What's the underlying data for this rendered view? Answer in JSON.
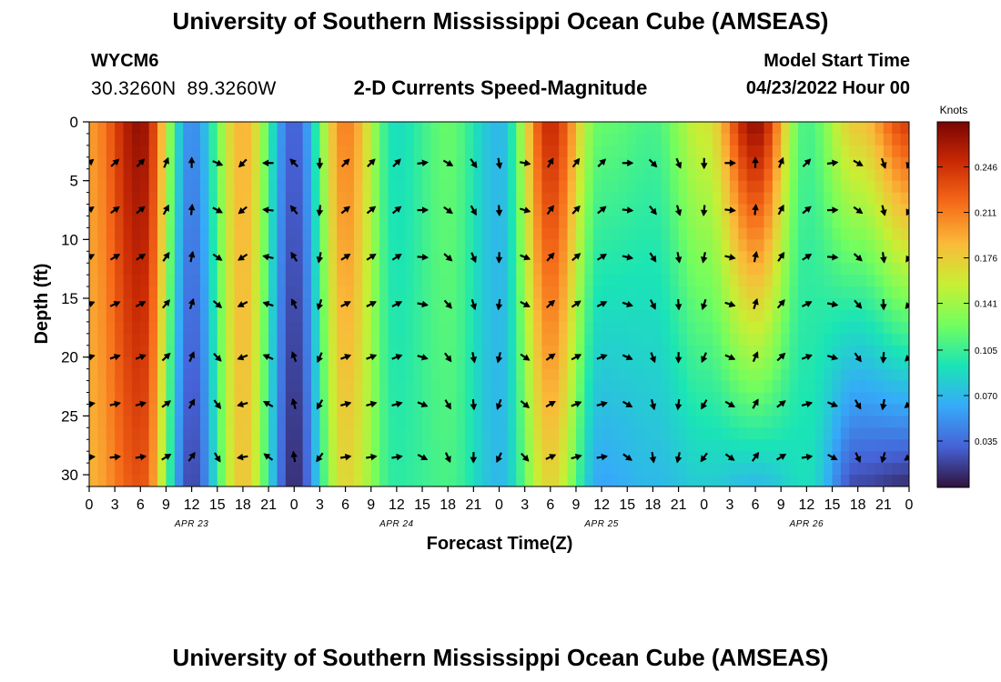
{
  "header": {
    "title": "University of Southern Mississippi Ocean Cube (AMSEAS)",
    "station_id": "WYCM6",
    "latitude": "30.3260N",
    "longitude": "89.3260W",
    "subtitle": "2-D Currents Speed-Magnitude",
    "model_start_label": "Model Start Time",
    "model_start_value": "04/23/2022 Hour 00"
  },
  "footer": {
    "title": "University of Southern Mississippi Ocean Cube (AMSEAS)"
  },
  "colorbar": {
    "unit": "Knots",
    "ticks": [
      "0.246",
      "0.211",
      "0.176",
      "0.141",
      "0.105",
      "0.070",
      "0.035"
    ],
    "tick_values": [
      0.246,
      0.211,
      0.176,
      0.141,
      0.105,
      0.07,
      0.035
    ],
    "range": [
      0,
      0.28
    ],
    "colors": [
      "#30123b",
      "#4662d7",
      "#36aaf9",
      "#1ae4b6",
      "#72fe5e",
      "#c8ef34",
      "#faba39",
      "#f66b19",
      "#ca2a04",
      "#7a0403"
    ]
  },
  "chart_data": {
    "type": "heatmap",
    "title": "2-D Currents Speed-Magnitude",
    "xlabel": "Forecast Time(Z)",
    "ylabel": "Depth (ft)",
    "x_range_hours": [
      0,
      96
    ],
    "y_range_ft": [
      0,
      31
    ],
    "y_inverted": true,
    "x_tick_labels": [
      "0",
      "3",
      "6",
      "9",
      "12",
      "15",
      "18",
      "21",
      "0",
      "3",
      "6",
      "9",
      "12",
      "15",
      "18",
      "21",
      "0",
      "3",
      "6",
      "9",
      "12",
      "15",
      "18",
      "21",
      "0",
      "3",
      "6",
      "9",
      "12",
      "15",
      "18",
      "21",
      "0"
    ],
    "x_tick_hours": [
      0,
      3,
      6,
      9,
      12,
      15,
      18,
      21,
      24,
      27,
      30,
      33,
      36,
      39,
      42,
      45,
      48,
      51,
      54,
      57,
      60,
      63,
      66,
      69,
      72,
      75,
      78,
      81,
      84,
      87,
      90,
      93,
      96
    ],
    "date_labels": [
      "APR 23",
      "APR 24",
      "APR 25",
      "APR 26"
    ],
    "date_label_hours": [
      12,
      36,
      60,
      84
    ],
    "y_tick_labels": [
      "0",
      "5",
      "10",
      "15",
      "20",
      "25",
      "30"
    ],
    "y_tick_values": [
      0,
      5,
      10,
      15,
      20,
      25,
      30
    ],
    "arrow_depths_ft": [
      3.5,
      7.5,
      11.5,
      15.5,
      20,
      24,
      28.5
    ],
    "speed_profile": {
      "columns_hours": [
        0,
        6,
        12,
        18,
        24,
        30,
        36,
        42,
        48,
        54,
        60,
        66,
        72,
        78,
        84,
        90,
        96
      ],
      "surface_knots": [
        0.2,
        0.27,
        0.05,
        0.19,
        0.03,
        0.21,
        0.09,
        0.12,
        0.07,
        0.25,
        0.12,
        0.11,
        0.16,
        0.27,
        0.11,
        0.18,
        0.24
      ],
      "bottom_knots": [
        0.19,
        0.23,
        0.02,
        0.18,
        0.01,
        0.17,
        0.1,
        0.11,
        0.07,
        0.17,
        0.06,
        0.07,
        0.08,
        0.07,
        0.09,
        0.02,
        0.01
      ]
    },
    "direction_deg_profile": {
      "columns_hours": [
        0,
        6,
        12,
        18,
        24,
        30,
        36,
        42,
        48,
        54,
        60,
        66,
        72,
        78,
        84,
        90,
        96
      ],
      "degrees": [
        50,
        45,
        0,
        225,
        315,
        45,
        45,
        120,
        170,
        30,
        45,
        135,
        180,
        0,
        45,
        120,
        200
      ]
    }
  }
}
